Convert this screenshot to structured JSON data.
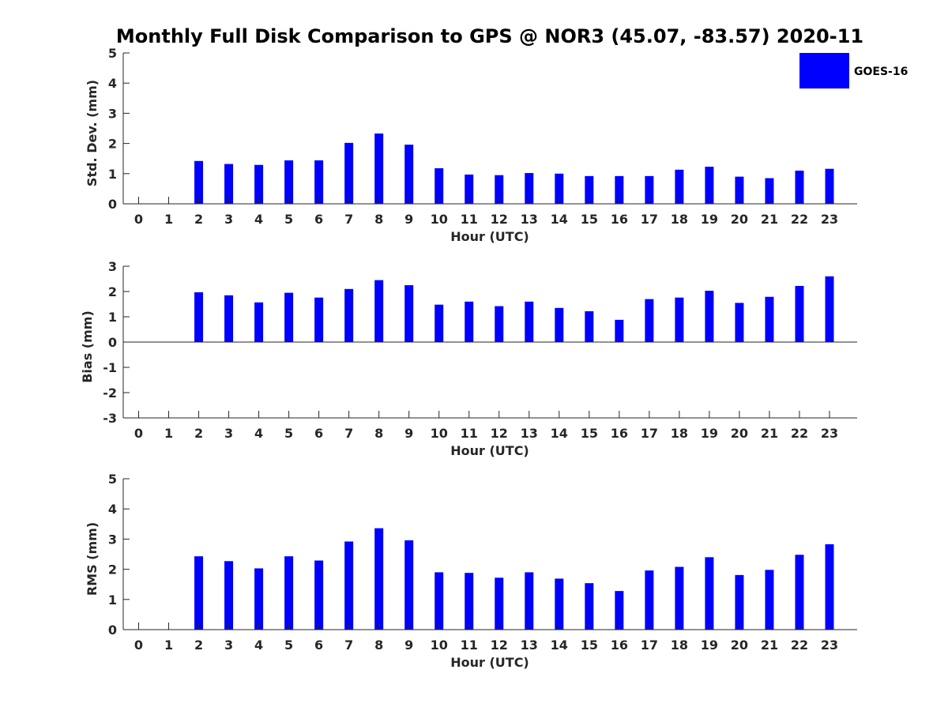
{
  "title": "Monthly Full Disk Comparison to GPS @ NOR3 (45.07, -83.57) 2020-11",
  "legend": {
    "label": "GOES-16",
    "placement": "top-right"
  },
  "colors": {
    "bar": "#0000ff",
    "axis": "#262626"
  },
  "chart_data": [
    {
      "type": "bar",
      "categories": [
        "0",
        "1",
        "2",
        "3",
        "4",
        "5",
        "6",
        "7",
        "8",
        "9",
        "10",
        "11",
        "12",
        "13",
        "14",
        "15",
        "16",
        "17",
        "18",
        "19",
        "20",
        "21",
        "22",
        "23"
      ],
      "series": [
        {
          "name": "GOES-16",
          "values": [
            null,
            null,
            1.42,
            1.32,
            1.29,
            1.44,
            1.44,
            2.02,
            2.33,
            1.96,
            1.18,
            0.97,
            0.95,
            1.02,
            1.0,
            0.92,
            0.92,
            0.92,
            1.13,
            1.23,
            0.9,
            0.85,
            1.1,
            1.16
          ]
        }
      ],
      "xlabel": "Hour (UTC)",
      "ylabel": "Std. Dev. (mm)",
      "ylim": [
        0,
        5
      ],
      "yticks": [
        "0",
        "1",
        "2",
        "3",
        "4",
        "5"
      ],
      "grid": false
    },
    {
      "type": "bar",
      "categories": [
        "0",
        "1",
        "2",
        "3",
        "4",
        "5",
        "6",
        "7",
        "8",
        "9",
        "10",
        "11",
        "12",
        "13",
        "14",
        "15",
        "16",
        "17",
        "18",
        "19",
        "20",
        "21",
        "22",
        "23"
      ],
      "series": [
        {
          "name": "GOES-16",
          "values": [
            null,
            null,
            1.97,
            1.85,
            1.57,
            1.95,
            1.76,
            2.1,
            2.45,
            2.25,
            1.48,
            1.6,
            1.42,
            1.6,
            1.35,
            1.22,
            0.88,
            1.7,
            1.76,
            2.03,
            1.55,
            1.79,
            2.22,
            2.6
          ]
        }
      ],
      "xlabel": "Hour (UTC)",
      "ylabel": "Bias (mm)",
      "ylim": [
        -3,
        3
      ],
      "yticks": [
        "-3",
        "-2",
        "-1",
        "0",
        "1",
        "2",
        "3"
      ],
      "grid": false
    },
    {
      "type": "bar",
      "categories": [
        "0",
        "1",
        "2",
        "3",
        "4",
        "5",
        "6",
        "7",
        "8",
        "9",
        "10",
        "11",
        "12",
        "13",
        "14",
        "15",
        "16",
        "17",
        "18",
        "19",
        "20",
        "21",
        "22",
        "23"
      ],
      "series": [
        {
          "name": "GOES-16",
          "values": [
            null,
            null,
            2.43,
            2.27,
            2.03,
            2.43,
            2.29,
            2.92,
            3.36,
            2.96,
            1.9,
            1.88,
            1.72,
            1.9,
            1.69,
            1.54,
            1.28,
            1.96,
            2.08,
            2.4,
            1.81,
            1.98,
            2.48,
            2.83
          ]
        }
      ],
      "xlabel": "Hour (UTC)",
      "ylabel": "RMS (mm)",
      "ylim": [
        0,
        5
      ],
      "yticks": [
        "0",
        "1",
        "2",
        "3",
        "4",
        "5"
      ],
      "grid": false
    }
  ]
}
